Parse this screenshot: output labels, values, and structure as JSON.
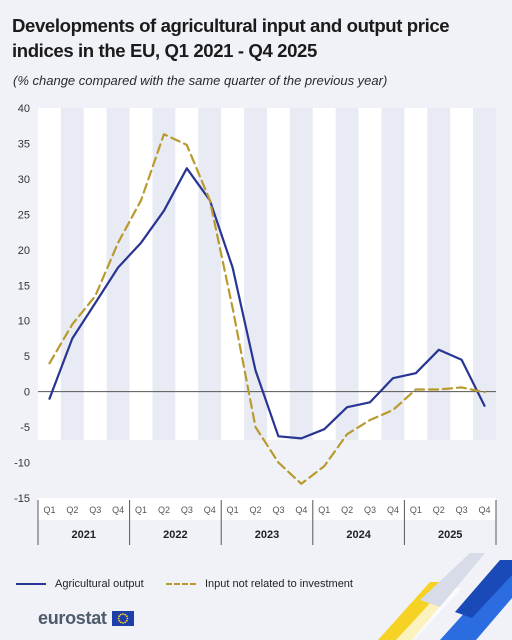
{
  "title": "Developments of agricultural input and output price indices in the EU, Q1 2021 - Q4 2025",
  "subtitle": "(% change compared with the same quarter of the previous year)",
  "logo_text": "eurostat",
  "colors": {
    "background": "#f0f2f8",
    "agricultural_output": "#283593",
    "input_not_related": "#b99a2e",
    "corner_yellow": "#f5d223",
    "corner_blue": "#2b6de0"
  },
  "chart_data": {
    "type": "line",
    "title": "Developments of agricultural input and output price indices in the EU, Q1 2021 - Q4 2025",
    "subtitle": "(% change compared with the same quarter of the previous year)",
    "xlabel": "",
    "ylabel": "",
    "ylim": [
      -15,
      40
    ],
    "yticks": [
      -15,
      -10,
      -5,
      0,
      5,
      10,
      15,
      20,
      25,
      30,
      35,
      40
    ],
    "grid": "vertical bands between quarters",
    "legend_position": "bottom",
    "years": [
      "2021",
      "2022",
      "2023",
      "2024",
      "2025"
    ],
    "quarter_labels": [
      "Q1",
      "Q2",
      "Q3",
      "Q4"
    ],
    "x": [
      "Q1 2021",
      "Q2 2021",
      "Q3 2021",
      "Q4 2021",
      "Q1 2022",
      "Q2 2022",
      "Q3 2022",
      "Q4 2022",
      "Q1 2023",
      "Q2 2023",
      "Q3 2023",
      "Q4 2023",
      "Q1 2024",
      "Q2 2024",
      "Q3 2024",
      "Q4 2024",
      "Q1 2025",
      "Q2 2025",
      "Q3 2025",
      "Q4 2025"
    ],
    "series": [
      {
        "name": "Agricultural output",
        "style": "solid",
        "color": "#283593",
        "values": [
          -1.0,
          7.5,
          12.5,
          17.5,
          21.0,
          25.5,
          31.5,
          27.0,
          17.5,
          3.0,
          -6.3,
          -6.6,
          -5.3,
          -2.2,
          -1.5,
          1.9,
          2.6,
          5.9,
          4.5,
          -2.0
        ]
      },
      {
        "name": "Input not related to investment",
        "style": "dashed",
        "color": "#b99a2e",
        "values": [
          4.0,
          9.5,
          13.5,
          21.0,
          27.0,
          36.3,
          34.8,
          27.0,
          11.8,
          -5.0,
          -10.0,
          -13.0,
          -10.5,
          -6.0,
          -4.0,
          -2.6,
          0.3,
          0.3,
          0.6,
          -0.1
        ]
      }
    ]
  }
}
